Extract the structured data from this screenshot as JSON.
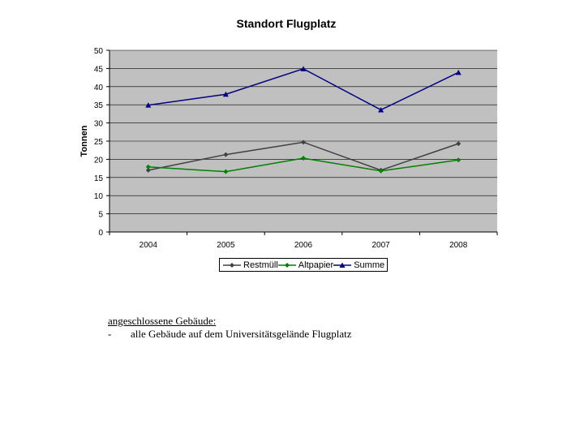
{
  "chart_data": {
    "type": "line",
    "title": "Standort Flugplatz",
    "xlabel": "",
    "ylabel": "Tonnen",
    "categories": [
      "2004",
      "2005",
      "2006",
      "2007",
      "2008"
    ],
    "ylim": [
      0,
      50
    ],
    "yticks": [
      0,
      5,
      10,
      15,
      20,
      25,
      30,
      35,
      40,
      45,
      50
    ],
    "grid": true,
    "legend_position": "bottom",
    "plot_background": "#c0c0c0",
    "series": [
      {
        "name": "Restmüll",
        "values": [
          17.0,
          21.3,
          24.7,
          17.0,
          24.3
        ],
        "color": "#404040",
        "marker": "diamond"
      },
      {
        "name": "Altpapier",
        "values": [
          17.9,
          16.6,
          20.3,
          16.8,
          19.8
        ],
        "color": "#008000",
        "marker": "diamond"
      },
      {
        "name": "Summe",
        "values": [
          34.9,
          37.9,
          44.9,
          33.6,
          43.9
        ],
        "color": "#000080",
        "marker": "triangle"
      }
    ]
  },
  "caption": {
    "heading": "angeschlossene Gebäude:",
    "bullet": "-",
    "item": "alle Gebäude auf dem Universitätsgelände Flugplatz"
  }
}
